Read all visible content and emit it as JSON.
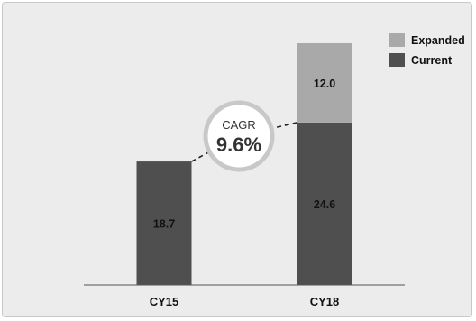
{
  "chart_data": {
    "type": "bar",
    "stacked": true,
    "categories": [
      "CY15",
      "CY18"
    ],
    "series": [
      {
        "name": "Current",
        "values": [
          18.7,
          24.6
        ]
      },
      {
        "name": "Expanded",
        "values": [
          null,
          12.0
        ]
      }
    ],
    "colors": {
      "Current": "#4f4f4f",
      "Expanded": "#a9a9a9",
      "panel": "#ececec",
      "circle_border": "#c8c8c8"
    },
    "data_labels": {
      "Current": [
        "18.7",
        "24.6"
      ],
      "Expanded": [
        "",
        "12.0"
      ]
    },
    "annotation": {
      "label": "CAGR",
      "value": "9.6%"
    },
    "ylim": [
      0,
      36.6
    ],
    "legend_position": "top-right",
    "grid": false
  }
}
